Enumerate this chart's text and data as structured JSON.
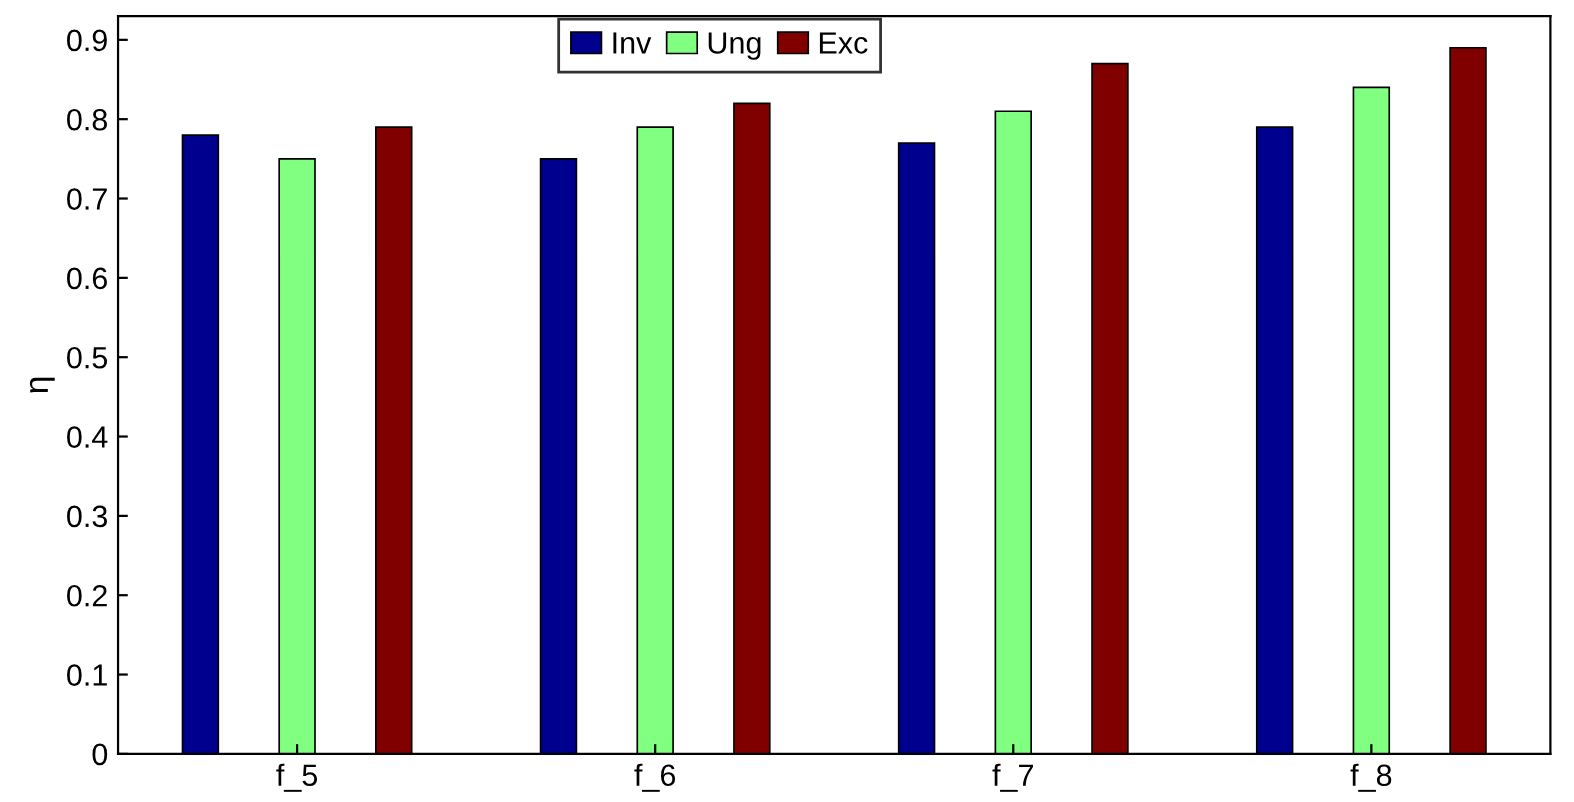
{
  "chart_data": {
    "type": "bar",
    "ylabel": "η",
    "categories": [
      "f_5",
      "f_6",
      "f_7",
      "f_8"
    ],
    "series": [
      {
        "name": "Inv",
        "color": "#00008f",
        "values": [
          0.78,
          0.75,
          0.77,
          0.79
        ]
      },
      {
        "name": "Ung",
        "color": "#80ff80",
        "values": [
          0.75,
          0.79,
          0.81,
          0.84
        ]
      },
      {
        "name": "Exc",
        "color": "#800000",
        "values": [
          0.79,
          0.82,
          0.87,
          0.89
        ]
      }
    ],
    "ylim": [
      0,
      0.93
    ],
    "yticks": [
      0,
      0.1,
      0.2,
      0.3,
      0.4,
      0.5,
      0.6,
      0.7,
      0.8,
      0.9
    ],
    "legend": "top",
    "grid": false
  }
}
